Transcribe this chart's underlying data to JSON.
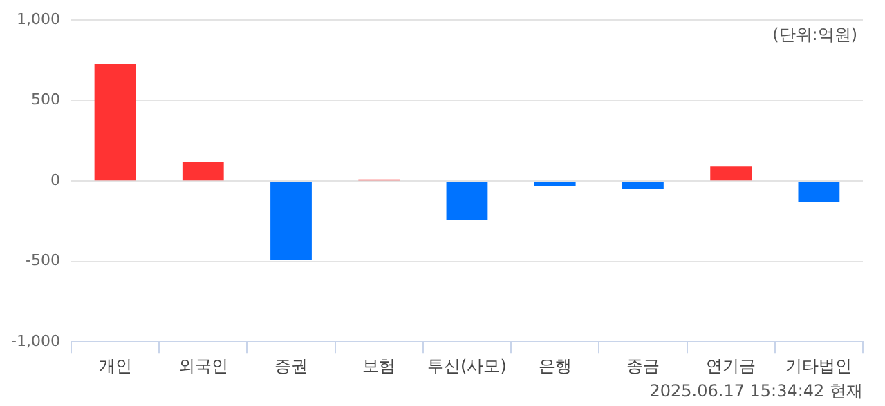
{
  "chart_data": {
    "type": "bar",
    "categories": [
      "개인",
      "외국인",
      "증권",
      "보험",
      "투신(사모)",
      "은행",
      "종금",
      "연기금",
      "기타법인"
    ],
    "values": [
      730,
      120,
      -490,
      10,
      -240,
      -30,
      -50,
      90,
      -130
    ],
    "colors": [
      "#ff3333",
      "#ff3333",
      "#0073ff",
      "#ff3333",
      "#0073ff",
      "#0073ff",
      "#0073ff",
      "#ff3333",
      "#0073ff"
    ],
    "ylim": [
      -1000,
      1000
    ],
    "yticks": [
      {
        "value": -1000,
        "label": "-1,000"
      },
      -500,
      0,
      500,
      {
        "value": 1000,
        "label": "1,000"
      }
    ],
    "grid": "y",
    "annotations": [
      "(단위:억원)",
      "2025.06.17 15:34:42 현재"
    ]
  }
}
